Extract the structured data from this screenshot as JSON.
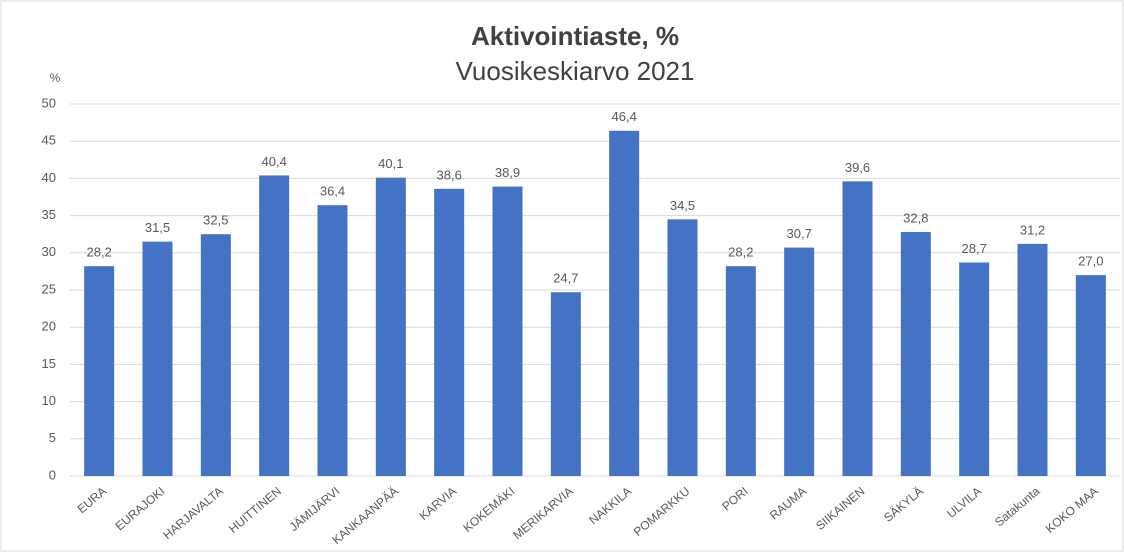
{
  "chart_data": {
    "type": "bar",
    "title": "Aktivointiaste, %",
    "subtitle": "Vuosikeskiarvo 2021",
    "y_label": "%",
    "categories": [
      "EURA",
      "EURAJOKI",
      "HARJAVALTA",
      "HUITTINEN",
      "JÄMIJÄRVI",
      "KANKAANPÄÄ",
      "KARVIA",
      "KOKEMÄKI",
      "MERIKARVIA",
      "NAKKILA",
      "POMARKKU",
      "PORI",
      "RAUMA",
      "SIIKAINEN",
      "SÄKYLÄ",
      "ULVILA",
      "Satakunta",
      "KOKO MAA"
    ],
    "values": [
      28.2,
      31.5,
      32.5,
      40.4,
      36.4,
      40.1,
      38.6,
      38.9,
      24.7,
      46.4,
      34.5,
      28.2,
      30.7,
      39.6,
      32.8,
      28.7,
      31.2,
      27.0
    ],
    "value_labels": [
      "28,2",
      "31,5",
      "32,5",
      "40,4",
      "36,4",
      "40,1",
      "38,6",
      "38,9",
      "24,7",
      "46,4",
      "34,5",
      "28,2",
      "30,7",
      "39,6",
      "32,8",
      "28,7",
      "31,2",
      "27,0"
    ],
    "color": "#4472c4",
    "ylim": [
      0,
      50
    ],
    "yticks": [
      0,
      5,
      10,
      15,
      20,
      25,
      30,
      35,
      40,
      45,
      50
    ],
    "grid": true
  }
}
